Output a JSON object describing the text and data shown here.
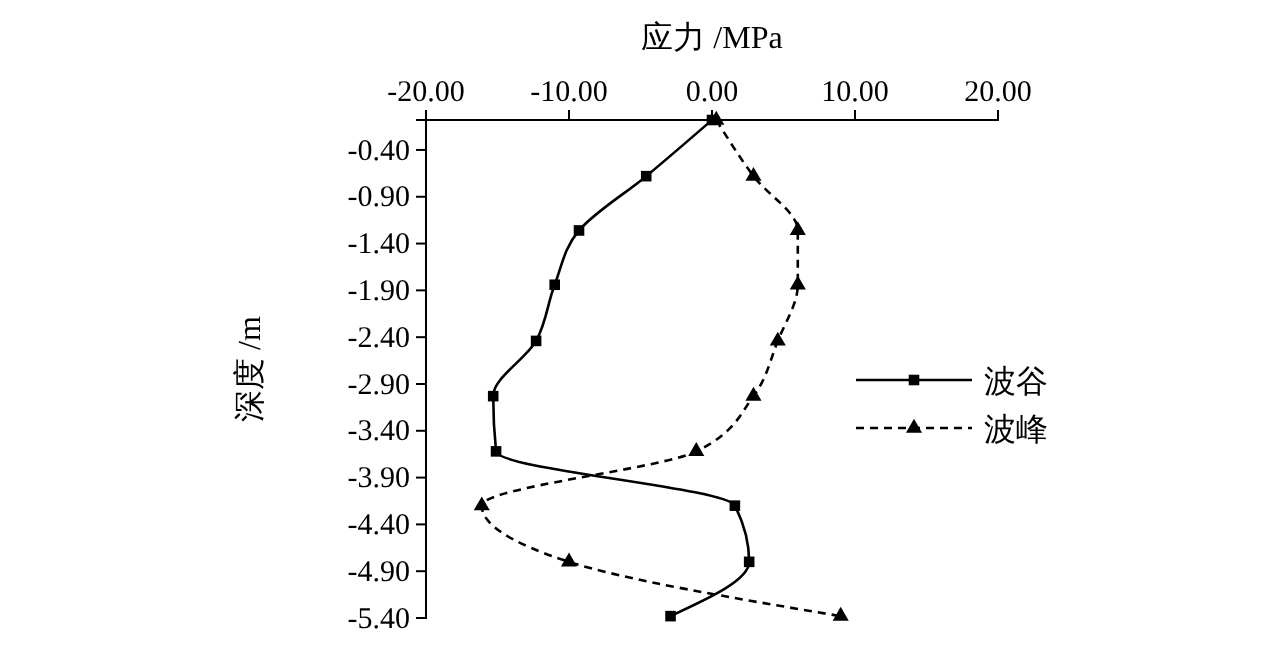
{
  "chart_data": {
    "type": "line",
    "orientation": "horizontal",
    "xlabel": "应力 /MPa",
    "ylabel": "深度 /m",
    "x": [
      -0.08,
      -0.68,
      -1.26,
      -1.84,
      -2.44,
      -3.03,
      -3.62,
      -4.2,
      -4.8,
      -5.38
    ],
    "series": [
      {
        "name": "波谷",
        "color": "#000000",
        "marker": "square",
        "line_style": "solid",
        "values": [
          0.0,
          -4.6,
          -9.3,
          -11.0,
          -12.3,
          -15.3,
          -15.1,
          1.6,
          2.6,
          -2.9
        ]
      },
      {
        "name": "波峰",
        "color": "#000000",
        "marker": "triangle",
        "line_style": "dashed",
        "values": [
          0.3,
          2.9,
          6.0,
          6.0,
          4.6,
          2.9,
          -1.1,
          -16.1,
          -10.0,
          9.0
        ]
      }
    ],
    "xlim": [
      -20,
      20
    ],
    "xticks": [
      {
        "value": -20,
        "label": "-20.00"
      },
      {
        "value": -10,
        "label": "-10.00"
      },
      {
        "value": 0,
        "label": "0.00"
      },
      {
        "value": 10,
        "label": "10.00"
      },
      {
        "value": 20,
        "label": "20.00"
      }
    ],
    "ylim": [
      -5.4,
      -0.08
    ],
    "yticks": [
      {
        "value": -0.4,
        "label": "-0.40"
      },
      {
        "value": -0.9,
        "label": "-0.90"
      },
      {
        "value": -1.4,
        "label": "-1.40"
      },
      {
        "value": -1.9,
        "label": "-1.90"
      },
      {
        "value": -2.4,
        "label": "-2.40"
      },
      {
        "value": -2.9,
        "label": "-2.90"
      },
      {
        "value": -3.4,
        "label": "-3.40"
      },
      {
        "value": -3.9,
        "label": "-3.90"
      },
      {
        "value": -4.4,
        "label": "-4.40"
      },
      {
        "value": -4.9,
        "label": "-4.90"
      },
      {
        "value": -5.4,
        "label": "-5.40"
      }
    ],
    "grid": false,
    "legend": "right"
  }
}
